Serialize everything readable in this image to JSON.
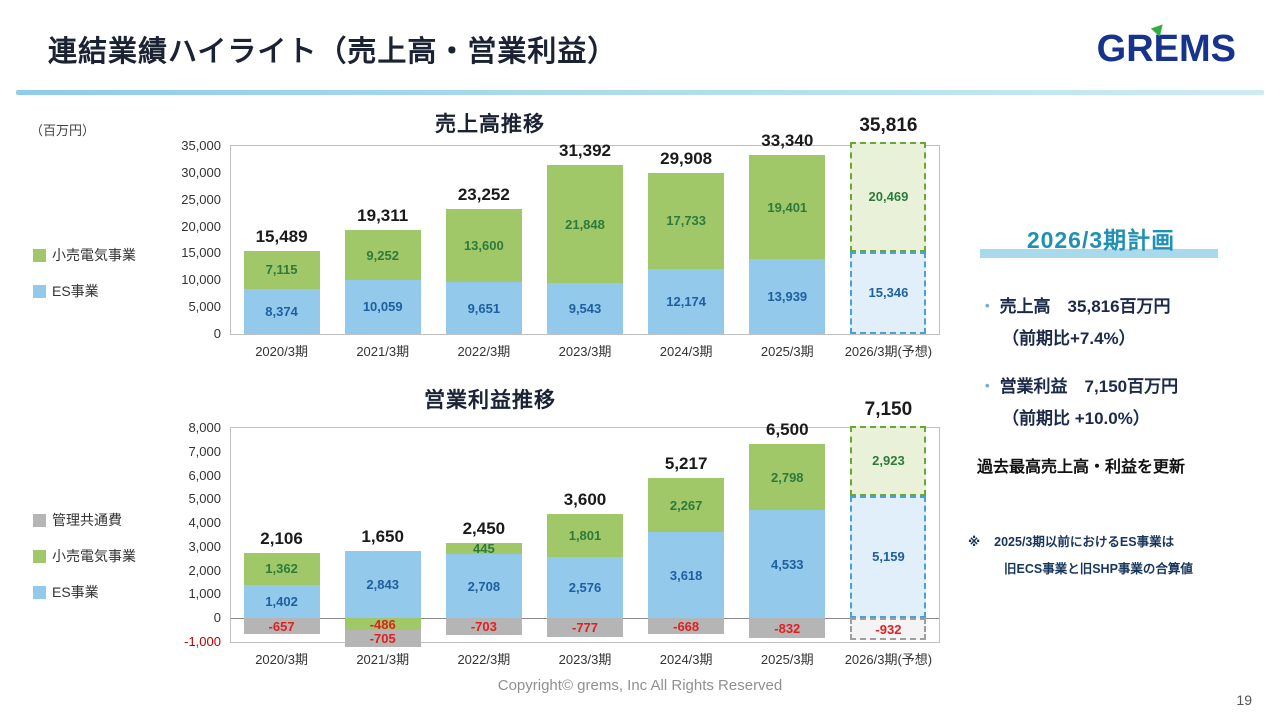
{
  "page": {
    "title": "連結業績ハイライト（売上高・営業利益）",
    "logo_text": "GREMS",
    "unit_label": "（百万円）",
    "footer": "Copyright© grems, Inc All Rights Reserved",
    "page_number": "19"
  },
  "legend_top": [
    {
      "label": "小売電気事業",
      "color": "#a0c868"
    },
    {
      "label": "ES事業",
      "color": "#93c9ea"
    }
  ],
  "legend_bottom": [
    {
      "label": "管理共通費",
      "color": "#b5b5b5"
    },
    {
      "label": "小売電気事業",
      "color": "#a0c868"
    },
    {
      "label": "ES事業",
      "color": "#93c9ea"
    }
  ],
  "chart_data": [
    {
      "type": "bar",
      "stacked": true,
      "title": "売上高推移",
      "ylabel": "百万円",
      "categories": [
        "2020/3期",
        "2021/3期",
        "2022/3期",
        "2023/3期",
        "2024/3期",
        "2025/3期",
        "2026/3期(予想)"
      ],
      "series": [
        {
          "key": "es",
          "name": "ES事業",
          "color": "#93c9ea",
          "label_color": "#1f5fa0",
          "forecast_fill": "#e0eff9",
          "forecast_border": "#4d9fd6",
          "values": [
            8374,
            10059,
            9651,
            9543,
            12174,
            13939,
            15346
          ]
        },
        {
          "key": "retail",
          "name": "小売電気事業",
          "color": "#a0c868",
          "label_color": "#2e7a3c",
          "forecast_fill": "#e9f2d9",
          "forecast_border": "#67a838",
          "values": [
            7115,
            9252,
            13600,
            21848,
            17733,
            19401,
            20469
          ]
        }
      ],
      "totals": [
        15489,
        19311,
        23252,
        31392,
        29908,
        33340,
        35816
      ],
      "ylim": [
        0,
        35000
      ],
      "ytick_step": 5000,
      "forecast_index": 6,
      "grid": false,
      "legend_position": "left"
    },
    {
      "type": "bar",
      "stacked": true,
      "title": "営業利益推移",
      "ylabel": "百万円",
      "categories": [
        "2020/3期",
        "2021/3期",
        "2022/3期",
        "2023/3期",
        "2024/3期",
        "2025/3期",
        "2026/3期(予想)"
      ],
      "series": [
        {
          "key": "es",
          "name": "ES事業",
          "color": "#93c9ea",
          "label_color": "#1f5fa0",
          "forecast_fill": "#e0eff9",
          "forecast_border": "#4d9fd6",
          "values": [
            1402,
            2843,
            2708,
            2576,
            3618,
            4533,
            5159
          ]
        },
        {
          "key": "retail",
          "name": "小売電気事業",
          "color": "#a0c868",
          "label_color": "#2e7a3c",
          "forecast_fill": "#e9f2d9",
          "forecast_border": "#67a838",
          "values": [
            1362,
            -486,
            445,
            1801,
            2267,
            2798,
            2923
          ]
        },
        {
          "key": "admin",
          "name": "管理共通費",
          "color": "#b5b5b5",
          "label_color": "#e02020",
          "forecast_fill": "#f4f4f4",
          "forecast_border": "#9e9e9e",
          "values": [
            -657,
            -705,
            -703,
            -777,
            -668,
            -832,
            -932
          ]
        }
      ],
      "totals": [
        2106,
        1650,
        2450,
        3600,
        5217,
        6500,
        7150
      ],
      "ylim": [
        -1000,
        8000
      ],
      "ytick_step": 1000,
      "forecast_index": 6,
      "grid": false,
      "legend_position": "left"
    }
  ],
  "plan_panel": {
    "heading": "2026/3期計画",
    "bullets": [
      {
        "main": "売上高　35,816百万円",
        "sub": "（前期比+7.4%）"
      },
      {
        "main": "営業利益　7,150百万円",
        "sub": "（前期比 +10.0%）"
      }
    ],
    "highlight": "過去最高売上高・利益を更新",
    "note": {
      "mark": "※",
      "line1": "2025/3期以前におけるES事業は",
      "line2": "旧ECS事業と旧SHP事業の合算値"
    }
  }
}
